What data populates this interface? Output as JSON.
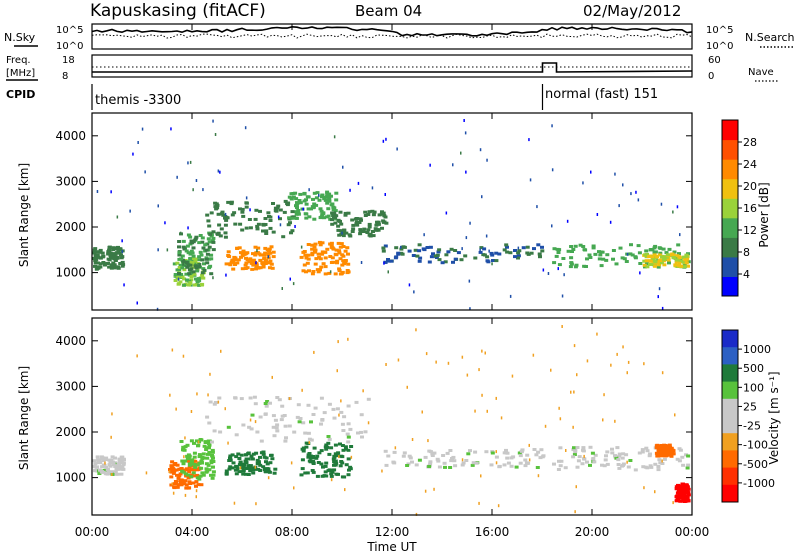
{
  "header": {
    "station": "Kapuskasing (fitACF)",
    "beam": "Beam 04",
    "date": "02/May/2012"
  },
  "status_panel": {
    "nsky_label": "N.Sky",
    "nsearch_label": "N.Search",
    "noise_ticks_left": [
      "10^5",
      "10^0"
    ],
    "noise_ticks_right": [
      "10^5",
      "10^0"
    ],
    "freq_label_line1": "Freq.",
    "freq_label_line2": "[MHz]",
    "freq_ticks": [
      "18",
      "8"
    ],
    "nave_label": "Nave",
    "nave_ticks": [
      "60",
      "0"
    ],
    "cpid_label": "CPID",
    "cpid_segments": [
      {
        "name": "themis",
        "id": "-3300",
        "text": "themis -3300"
      },
      {
        "name": "normal (fast)",
        "id": "151",
        "text": "normal (fast) 151"
      }
    ],
    "cpid_change_time": "18:10"
  },
  "colors": {
    "power_scale": [
      "#0000ff",
      "#1f4fa8",
      "#3a7a46",
      "#46a852",
      "#9ad23a",
      "#f0c010",
      "#ff8a00",
      "#ff5000",
      "#ff0000"
    ],
    "velocity_scale": [
      "#1a2bc8",
      "#2c60c4",
      "#1f7a3a",
      "#58c23c",
      "#c8c8c8",
      "#c8c8c8",
      "#f0a020",
      "#ff6a00",
      "#ff3000",
      "#ff0000"
    ]
  },
  "chart_data": [
    {
      "type": "heatmap",
      "panel": "power",
      "ylabel": "Slant Range [km]",
      "yticks": [
        "1000",
        "2000",
        "3000",
        "4000"
      ],
      "ylim": [
        180,
        4500
      ],
      "xlim_hours": [
        0,
        24
      ],
      "colorbar_label": "Power [dB]",
      "colorbar_ticks": [
        "4",
        "8",
        "12",
        "16",
        "20",
        "24",
        "28"
      ],
      "colorbar_range": [
        0,
        32
      ],
      "features": [
        {
          "x": [
            3.2,
            4.4
          ],
          "y": [
            750,
            1350
          ],
          "value": 14
        },
        {
          "x": [
            3.4,
            4.8
          ],
          "y": [
            1000,
            1900
          ],
          "value": 10
        },
        {
          "x": [
            4.5,
            8.0
          ],
          "y": [
            1800,
            2600
          ],
          "value": 9
        },
        {
          "x": [
            5.3,
            7.2
          ],
          "y": [
            1100,
            1600
          ],
          "value": 24
        },
        {
          "x": [
            7.8,
            9.7
          ],
          "y": [
            2200,
            2800
          ],
          "value": 11
        },
        {
          "x": [
            8.3,
            10.2
          ],
          "y": [
            1000,
            1700
          ],
          "value": 24
        },
        {
          "x": [
            9.5,
            11.7
          ],
          "y": [
            1800,
            2400
          ],
          "value": 9
        },
        {
          "x": [
            11.5,
            18.0
          ],
          "y": [
            1250,
            1650
          ],
          "value": 6
        },
        {
          "x": [
            0,
            1.2
          ],
          "y": [
            1100,
            1600
          ],
          "value": 9
        },
        {
          "x": [
            18.4,
            23.8
          ],
          "y": [
            1150,
            1650
          ],
          "value": 11
        },
        {
          "x": [
            22.0,
            23.8
          ],
          "y": [
            1150,
            1450
          ],
          "value": 18
        }
      ]
    },
    {
      "type": "heatmap",
      "panel": "velocity",
      "ylabel": "Slant Range [km]",
      "yticks": [
        "1000",
        "2000",
        "3000",
        "4000"
      ],
      "ylim": [
        180,
        4500
      ],
      "xlim_hours": [
        0,
        24
      ],
      "xlabel": "Time UT",
      "xticks": [
        "00:00",
        "04:00",
        "08:00",
        "12:00",
        "16:00",
        "20:00",
        "00:00"
      ],
      "colorbar_label": "Velocity [m s⁻¹]",
      "colorbar_ticks": [
        "1000",
        "500",
        "100",
        "25",
        "-25",
        "-100",
        "-500",
        "-1000"
      ],
      "features": [
        {
          "x": [
            3.0,
            4.3
          ],
          "y": [
            800,
            1400
          ],
          "value": -300
        },
        {
          "x": [
            3.5,
            4.8
          ],
          "y": [
            1000,
            1900
          ],
          "value": 50
        },
        {
          "x": [
            4.5,
            11.0
          ],
          "y": [
            1800,
            2800
          ],
          "value": 0
        },
        {
          "x": [
            5.3,
            7.3
          ],
          "y": [
            1100,
            1600
          ],
          "value": 150
        },
        {
          "x": [
            8.3,
            10.3
          ],
          "y": [
            1000,
            1800
          ],
          "value": 150
        },
        {
          "x": [
            11.5,
            18.0
          ],
          "y": [
            1250,
            1650
          ],
          "value": 0
        },
        {
          "x": [
            0,
            1.2
          ],
          "y": [
            1100,
            1500
          ],
          "value": 0
        },
        {
          "x": [
            18.4,
            23.8
          ],
          "y": [
            1200,
            1700
          ],
          "value": 0
        },
        {
          "x": [
            22.5,
            23.2
          ],
          "y": [
            1500,
            1750
          ],
          "value": -400
        },
        {
          "x": [
            23.3,
            23.8
          ],
          "y": [
            500,
            900
          ],
          "value": -800
        }
      ]
    }
  ]
}
